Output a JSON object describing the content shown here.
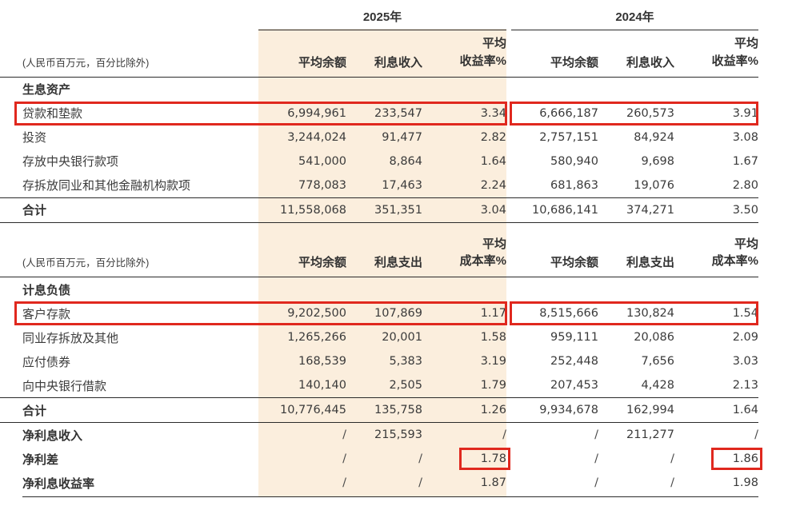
{
  "colors": {
    "band": "#fbeedd",
    "highlight_red": "#e0281e",
    "rule": "#2a2a2a",
    "text": "#3b3b3b"
  },
  "years": {
    "y2025": "2025年",
    "y2024": "2024年"
  },
  "note": "(人民币百万元，百分比除外)",
  "t1": {
    "h": {
      "avg": "平均余额",
      "inc": "利息收入",
      "rate1": "平均",
      "rate2": "收益率%"
    },
    "sec": "生息资产",
    "rows": [
      {
        "label": "贷款和垫款",
        "c": [
          "6,994,961",
          "233,547",
          "3.34",
          "6,666,187",
          "260,573",
          "3.91"
        ]
      },
      {
        "label": "投资",
        "c": [
          "3,244,024",
          "91,477",
          "2.82",
          "2,757,151",
          "84,924",
          "3.08"
        ]
      },
      {
        "label": "存放中央银行款项",
        "c": [
          "541,000",
          "8,864",
          "1.64",
          "580,940",
          "9,698",
          "1.67"
        ]
      },
      {
        "label": "存拆放同业和其他金融机构款项",
        "c": [
          "778,083",
          "17,463",
          "2.24",
          "681,863",
          "19,076",
          "2.80"
        ]
      }
    ],
    "total": {
      "label": "合计",
      "c": [
        "11,558,068",
        "351,351",
        "3.04",
        "10,686,141",
        "374,271",
        "3.50"
      ]
    }
  },
  "t2": {
    "h": {
      "avg": "平均余额",
      "exp": "利息支出",
      "rate1": "平均",
      "rate2": "成本率%"
    },
    "sec": "计息负债",
    "rows": [
      {
        "label": "客户存款",
        "c": [
          "9,202,500",
          "107,869",
          "1.17",
          "8,515,666",
          "130,824",
          "1.54"
        ]
      },
      {
        "label": "同业存拆放及其他",
        "c": [
          "1,265,266",
          "20,001",
          "1.58",
          "959,111",
          "20,086",
          "2.09"
        ]
      },
      {
        "label": "应付债券",
        "c": [
          "168,539",
          "5,383",
          "3.19",
          "252,448",
          "7,656",
          "3.03"
        ]
      },
      {
        "label": "向中央银行借款",
        "c": [
          "140,140",
          "2,505",
          "1.79",
          "207,453",
          "4,428",
          "2.13"
        ]
      }
    ],
    "total": {
      "label": "合计",
      "c": [
        "10,776,445",
        "135,758",
        "1.26",
        "9,934,678",
        "162,994",
        "1.64"
      ]
    },
    "extras": [
      {
        "label": "净利息收入",
        "c": [
          "/",
          "215,593",
          "/",
          "/",
          "211,277",
          "/"
        ]
      },
      {
        "label": "净利差",
        "c": [
          "/",
          "/",
          "1.78",
          "/",
          "/",
          "1.86"
        ]
      },
      {
        "label": "净利息收益率",
        "c": [
          "/",
          "/",
          "1.87",
          "/",
          "/",
          "1.98"
        ]
      }
    ]
  }
}
